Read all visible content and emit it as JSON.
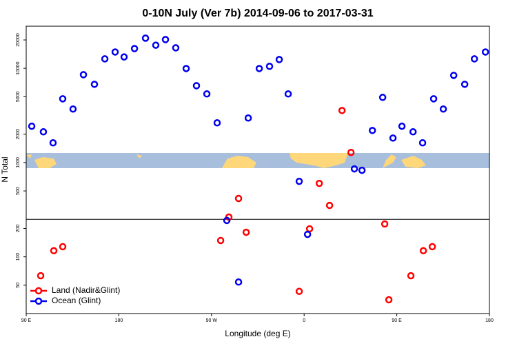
{
  "chart_data": {
    "type": "scatter",
    "title": "0-10N July (Ver 7b)   2014-09-06 to 2017-03-31",
    "x_label": "Longitude (deg E)",
    "y_label": "N Total",
    "log_y": true,
    "xlim": [
      90,
      540
    ],
    "xticks": [
      {
        "value": 90,
        "label": "90 E"
      },
      180,
      {
        "value": 270,
        "label": "90 W"
      },
      {
        "value": 360,
        "label": "0"
      },
      {
        "value": 450,
        "label": "90 E"
      },
      {
        "value": 540,
        "label": "180"
      }
    ],
    "ylim": [
      25,
      28000
    ],
    "yticks": [
      50,
      100,
      200,
      500,
      1000,
      2000,
      5000,
      10000,
      20000
    ],
    "hline": 250,
    "legend": "bottom-left",
    "series": [
      {
        "name": "Land (Nadir&Glint)",
        "color": "#ff0000",
        "x": [
          104.1,
          116.8,
          125.5,
          278.9,
          286.9,
          296.3,
          303.7,
          355.2,
          365.3,
          374.7,
          384.7,
          396.8,
          405.5,
          438.3,
          442.3,
          463.7,
          475.8,
          484.5
        ],
        "values": [
          63,
          116,
          128,
          149,
          264,
          416,
          182,
          43,
          198,
          601,
          351,
          3570,
          1280,
          223,
          35,
          63,
          116,
          128
        ]
      },
      {
        "name": "Ocean (Glint)",
        "color": "#0000ee",
        "x": [
          95.4,
          106.7,
          116.1,
          125.5,
          135.5,
          145.6,
          156.3,
          166.4,
          176.4,
          185.1,
          195.2,
          205.9,
          215.9,
          225.3,
          235.3,
          245.4,
          255.4,
          265.5,
          275.5,
          284.9,
          296.3,
          305.7,
          316.4,
          326.4,
          335.8,
          344.5,
          355.2,
          363.3,
          408.8,
          416.2,
          426.3,
          436.3,
          446.3,
          455,
          465.8,
          475.1,
          485.8,
          495.2,
          505.3,
          516,
          525.4,
          536.1
        ],
        "values": [
          2430,
          2120,
          1620,
          4750,
          3700,
          8560,
          6770,
          12600,
          14900,
          13200,
          16200,
          20900,
          17600,
          20200,
          16500,
          9950,
          6540,
          5350,
          2640,
          243,
          54,
          2970,
          9950,
          10500,
          12400,
          5350,
          632,
          173,
          857,
          828,
          2190,
          4920,
          1820,
          2430,
          2120,
          1620,
          4750,
          3700,
          8420,
          6770,
          12600,
          14900
        ]
      }
    ]
  }
}
